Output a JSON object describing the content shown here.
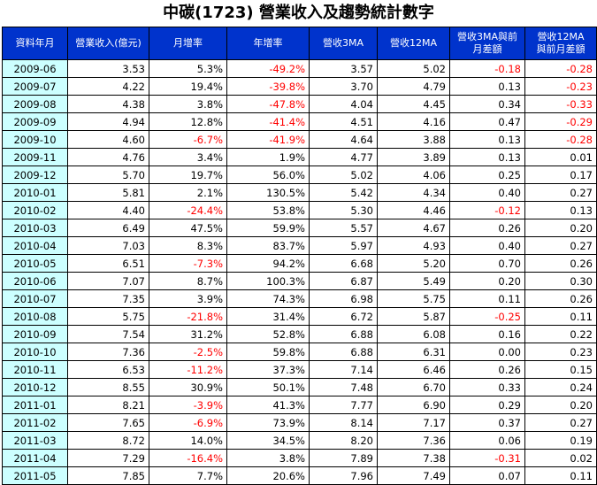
{
  "title": "中碳(1723) 營業收入及趨勢統計數字",
  "headers": [
    [
      "資料年月"
    ],
    [
      "營業收入(億元)"
    ],
    [
      "月增率"
    ],
    [
      "年增率"
    ],
    [
      "營收3MA"
    ],
    [
      "營收12MA"
    ],
    [
      "營收3MA與前",
      "月差額"
    ],
    [
      "營收12MA",
      "與前月差額"
    ]
  ],
  "rows": [
    [
      "2009-06",
      "3.53",
      "5.3%",
      "-49.2%",
      "3.57",
      "5.02",
      "-0.18",
      "-0.28"
    ],
    [
      "2009-07",
      "4.22",
      "19.4%",
      "-39.8%",
      "3.70",
      "4.79",
      "0.13",
      "-0.23"
    ],
    [
      "2009-08",
      "4.38",
      "3.8%",
      "-47.8%",
      "4.04",
      "4.45",
      "0.34",
      "-0.33"
    ],
    [
      "2009-09",
      "4.94",
      "12.8%",
      "-41.4%",
      "4.51",
      "4.16",
      "0.47",
      "-0.29"
    ],
    [
      "2009-10",
      "4.60",
      "-6.7%",
      "-41.9%",
      "4.64",
      "3.88",
      "0.13",
      "-0.28"
    ],
    [
      "2009-11",
      "4.76",
      "3.4%",
      "1.9%",
      "4.77",
      "3.89",
      "0.13",
      "0.01"
    ],
    [
      "2009-12",
      "5.70",
      "19.7%",
      "56.0%",
      "5.02",
      "4.06",
      "0.25",
      "0.17"
    ],
    [
      "2010-01",
      "5.81",
      "2.1%",
      "130.5%",
      "5.42",
      "4.34",
      "0.40",
      "0.27"
    ],
    [
      "2010-02",
      "4.40",
      "-24.4%",
      "53.8%",
      "5.30",
      "4.46",
      "-0.12",
      "0.13"
    ],
    [
      "2010-03",
      "6.49",
      "47.5%",
      "59.9%",
      "5.57",
      "4.67",
      "0.26",
      "0.20"
    ],
    [
      "2010-04",
      "7.03",
      "8.3%",
      "83.7%",
      "5.97",
      "4.93",
      "0.40",
      "0.27"
    ],
    [
      "2010-05",
      "6.51",
      "-7.3%",
      "94.2%",
      "6.68",
      "5.20",
      "0.70",
      "0.26"
    ],
    [
      "2010-06",
      "7.07",
      "8.7%",
      "100.3%",
      "6.87",
      "5.49",
      "0.20",
      "0.30"
    ],
    [
      "2010-07",
      "7.35",
      "3.9%",
      "74.3%",
      "6.98",
      "5.75",
      "0.11",
      "0.26"
    ],
    [
      "2010-08",
      "5.75",
      "-21.8%",
      "31.4%",
      "6.72",
      "5.87",
      "-0.25",
      "0.11"
    ],
    [
      "2010-09",
      "7.54",
      "31.2%",
      "52.8%",
      "6.88",
      "6.08",
      "0.16",
      "0.22"
    ],
    [
      "2010-10",
      "7.36",
      "-2.5%",
      "59.8%",
      "6.88",
      "6.31",
      "0.00",
      "0.23"
    ],
    [
      "2010-11",
      "6.53",
      "-11.2%",
      "37.3%",
      "7.14",
      "6.46",
      "0.26",
      "0.15"
    ],
    [
      "2010-12",
      "8.55",
      "30.9%",
      "50.1%",
      "7.48",
      "6.70",
      "0.33",
      "0.24"
    ],
    [
      "2011-01",
      "8.21",
      "-3.9%",
      "41.3%",
      "7.77",
      "6.90",
      "0.29",
      "0.20"
    ],
    [
      "2011-02",
      "7.65",
      "-6.9%",
      "73.9%",
      "8.14",
      "7.17",
      "0.37",
      "0.27"
    ],
    [
      "2011-03",
      "8.72",
      "14.0%",
      "34.5%",
      "8.20",
      "7.36",
      "0.06",
      "0.19"
    ],
    [
      "2011-04",
      "7.29",
      "-16.4%",
      "3.8%",
      "7.89",
      "7.38",
      "-0.31",
      "0.02"
    ],
    [
      "2011-05",
      "7.85",
      "7.7%",
      "20.6%",
      "7.96",
      "7.49",
      "0.07",
      "0.11"
    ]
  ],
  "colors": {
    "header_bg": "#0033cc",
    "header_text": "#ffffff",
    "date_bg": "#ccffff",
    "negative": "#ff0000",
    "border": "#000000"
  }
}
